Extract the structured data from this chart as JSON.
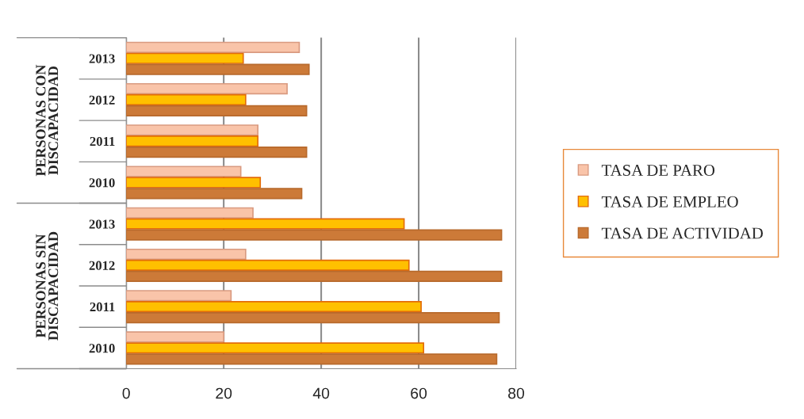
{
  "chart_data": {
    "type": "bar",
    "orientation": "horizontal",
    "categories": [
      "2013",
      "2012",
      "2011",
      "2010",
      "2013",
      "2012",
      "2011",
      "2010"
    ],
    "annotations": [
      "PERSONAS CON DISCAPACIDAD",
      "PERSONAS SIN DISCAPACIDAD"
    ],
    "series": [
      {
        "name": "TASA DE PARO",
        "color": "#f9c4a9",
        "values": [
          35.5,
          33,
          27,
          23.5,
          26,
          24.5,
          21.5,
          20
        ]
      },
      {
        "name": "TASA DE EMPLEO",
        "color": "#ffc000",
        "values": [
          24,
          24.5,
          27,
          27.5,
          57,
          58,
          60.5,
          61
        ]
      },
      {
        "name": "TASA DE ACTIVIDAD",
        "color": "#cc7a38",
        "values": [
          37.5,
          37,
          37,
          36,
          77,
          77,
          76.5,
          76
        ]
      }
    ],
    "xlim": [
      0,
      80
    ],
    "xticks": [
      0,
      20,
      40,
      60,
      80
    ],
    "grid": "x",
    "legend": "right"
  }
}
